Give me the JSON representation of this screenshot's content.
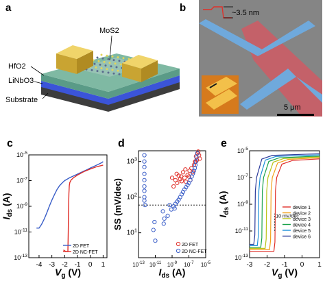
{
  "panels": {
    "a": {
      "letter": "a",
      "labels": {
        "channel": "MoS2",
        "gate_oxide": "HfO2",
        "ferroelectric": "LiNbO3",
        "substrate": "Substrate"
      }
    },
    "b": {
      "letter": "b",
      "thickness": "~3.5 nm",
      "scale_bar": "5 μm"
    },
    "c": {
      "letter": "c"
    },
    "d": {
      "letter": "d"
    },
    "e": {
      "letter": "e"
    }
  },
  "colors": {
    "fet": "#3a5ec8",
    "ncfet": "#e0302a",
    "substrate_dark": "#3d3d3d",
    "substrate_blue": "#3b54d8",
    "substrate_green": "#7fb9a3",
    "contact_gold": "#e4c45a",
    "sem_background": "#8a8a8a",
    "sem_blue": "#6fa9dc",
    "sem_red": "#cf5a64",
    "afm_orange": "#d67a1c"
  },
  "chart_data": [
    {
      "panel": "c",
      "type": "line",
      "xlabel": "Vg (V)",
      "ylabel": "Ids (A)",
      "xlim": [
        -4.8,
        1.3
      ],
      "ylog": true,
      "ylim": [
        1e-13,
        1e-05
      ],
      "xticks": [
        -4,
        -3,
        -2,
        -1,
        0,
        1
      ],
      "yticks": [
        {
          "value": 1e-13,
          "label": "10^-13"
        },
        {
          "value": 1e-11,
          "label": "10^-11"
        },
        {
          "value": 1e-09,
          "label": "10^-9"
        },
        {
          "value": 1e-07,
          "label": "10^-7"
        },
        {
          "value": 1e-05,
          "label": "10^-5"
        }
      ],
      "legend": "bottom-right",
      "series": [
        {
          "name": "2D FET",
          "color": "#3a5ec8",
          "x": [
            -4.2,
            -4.0,
            -3.8,
            -3.6,
            -3.4,
            -3.2,
            -3.0,
            -2.8,
            -2.6,
            -2.4,
            -2.2,
            -2.0,
            -1.8,
            -1.6,
            -1.4,
            -1.2,
            -1.0,
            -0.8,
            -0.5,
            -0.2,
            0.0,
            0.3,
            0.6,
            0.9,
            1.0
          ],
          "y": [
            2e-11,
            2e-11,
            4e-11,
            1e-10,
            3e-10,
            1e-09,
            3e-09,
            8e-09,
            2e-08,
            4e-08,
            6.5e-08,
            1e-07,
            1.3e-07,
            1.7e-07,
            2.1e-07,
            2.6e-07,
            3.2e-07,
            4e-07,
            5.5e-07,
            7.5e-07,
            9.5e-07,
            1.3e-06,
            1.8e-06,
            2.5e-06,
            3e-06
          ]
        },
        {
          "name": "2D NC-FET",
          "color": "#e0302a",
          "x": [
            -2.1,
            -1.9,
            -1.75,
            -1.72,
            -1.7,
            -1.67,
            -1.64,
            -1.6,
            -1.5,
            -1.3,
            -1.0,
            -0.5,
            0.0,
            0.5,
            1.0
          ],
          "y": [
            4e-13,
            3e-13,
            3e-13,
            1e-11,
            5e-10,
            1e-08,
            4e-08,
            7e-08,
            1.1e-07,
            1.7e-07,
            2.7e-07,
            5e-07,
            8e-07,
            1.2e-06,
            1.6e-06
          ]
        }
      ]
    },
    {
      "panel": "d",
      "type": "scatter",
      "xlabel": "Ids (A)",
      "ylabel": "SS (mV/dec)",
      "xlog": true,
      "ylog": true,
      "xlim": [
        1e-13,
        1e-05
      ],
      "ylim": [
        2,
        2000
      ],
      "xticks": [
        {
          "value": 1e-13,
          "label": "10^-13"
        },
        {
          "value": 1e-11,
          "label": "10^-11"
        },
        {
          "value": 1e-09,
          "label": "10^-9"
        },
        {
          "value": 1e-07,
          "label": "10^-7"
        },
        {
          "value": 1e-05,
          "label": "10^-5"
        }
      ],
      "yticks": [
        {
          "value": 1000,
          "label": "10^3"
        },
        {
          "value": 100,
          "label": "10^2"
        },
        {
          "value": 10,
          "label": "10^1"
        }
      ],
      "reference_line": {
        "y": 60
      },
      "legend": "bottom-right",
      "series": [
        {
          "name": "2D FET",
          "color": "#e0302a",
          "x": [
            1.5e-09,
            2.5e-09,
            4e-09,
            6e-09,
            9e-09,
            1.4e-08,
            2e-08,
            3e-08,
            4.5e-08,
            7e-08,
            1e-07,
            1.5e-07,
            2e-07,
            3e-07,
            4e-07,
            5.5e-07,
            7e-07,
            9e-07,
            1.1e-06,
            1.3e-06,
            1.6e-06,
            2e-06,
            1e-09,
            3.5e-09,
            1.2e-08,
            3.8e-08,
            1.2e-07,
            6e-07
          ],
          "y": [
            200,
            300,
            250,
            400,
            320,
            280,
            500,
            350,
            270,
            420,
            380,
            300,
            650,
            500,
            800,
            1000,
            1400,
            1100,
            1700,
            1900,
            1500,
            1200,
            350,
            450,
            380,
            600,
            550,
            950
          ]
        },
        {
          "name": "2D NC-FET",
          "color": "#3a5ec8",
          "x": [
            5e-13,
            5e-13,
            5e-13,
            5e-13,
            5e-13,
            5e-13,
            5e-13,
            5e-13,
            5e-13,
            6e-13,
            8e-12,
            6e-12,
            1e-11,
            8e-11,
            1.2e-10,
            1e-10,
            5e-10,
            8e-10,
            1.5e-09,
            2.5e-09,
            4e-09,
            6e-09,
            9e-09,
            1.4e-08,
            2e-08,
            3e-08,
            4.5e-08,
            7e-08,
            1e-07,
            1.5e-07,
            2.2e-07,
            3e-07,
            4e-07,
            5e-07,
            6e-07,
            7e-07,
            8e-07,
            1e-06,
            3e-10,
            2e-09
          ],
          "y": [
            1500,
            1000,
            700,
            450,
            300,
            200,
            150,
            100,
            80,
            60,
            20,
            12,
            6,
            40,
            25,
            18,
            60,
            45,
            55,
            65,
            75,
            85,
            100,
            120,
            140,
            165,
            190,
            220,
            250,
            300,
            380,
            460,
            550,
            650,
            800,
            1000,
            1300,
            1700,
            30,
            48
          ]
        }
      ]
    },
    {
      "panel": "e",
      "type": "line",
      "xlabel": "Vg (V)",
      "ylabel": "Ids (A)",
      "xlim": [
        -3,
        1
      ],
      "ylog": true,
      "ylim": [
        1e-13,
        1e-05
      ],
      "xticks": [
        -3,
        -2,
        -1,
        0,
        1
      ],
      "yticks": [
        {
          "value": 1e-13,
          "label": "10^-13"
        },
        {
          "value": 1e-11,
          "label": "10^-11"
        },
        {
          "value": 1e-09,
          "label": "10^-9"
        },
        {
          "value": 1e-07,
          "label": "10^-7"
        },
        {
          "value": 1e-05,
          "label": "10^-5"
        }
      ],
      "annotation": "10 mV/dec",
      "legend": "bottom-right",
      "series": [
        {
          "name": "device 1",
          "color": "#e0302a",
          "vth": -1.55,
          "ioff": 3e-13,
          "ion": 2.5e-06
        },
        {
          "name": "device 2",
          "color": "#f3a01a",
          "vth": -1.8,
          "ioff": 4e-13,
          "ion": 3e-06
        },
        {
          "name": "device 3",
          "color": "#b9c417",
          "vth": -2.05,
          "ioff": 5e-13,
          "ion": 3.5e-06
        },
        {
          "name": "device 4",
          "color": "#17a14a",
          "vth": -2.3,
          "ioff": 6e-13,
          "ion": 4e-06
        },
        {
          "name": "device 5",
          "color": "#1b8fd9",
          "vth": -2.5,
          "ioff": 8e-13,
          "ion": 5e-06
        },
        {
          "name": "device 6",
          "color": "#2b3a9a",
          "vth": -2.7,
          "ioff": 1e-12,
          "ion": 6e-06
        }
      ]
    }
  ]
}
